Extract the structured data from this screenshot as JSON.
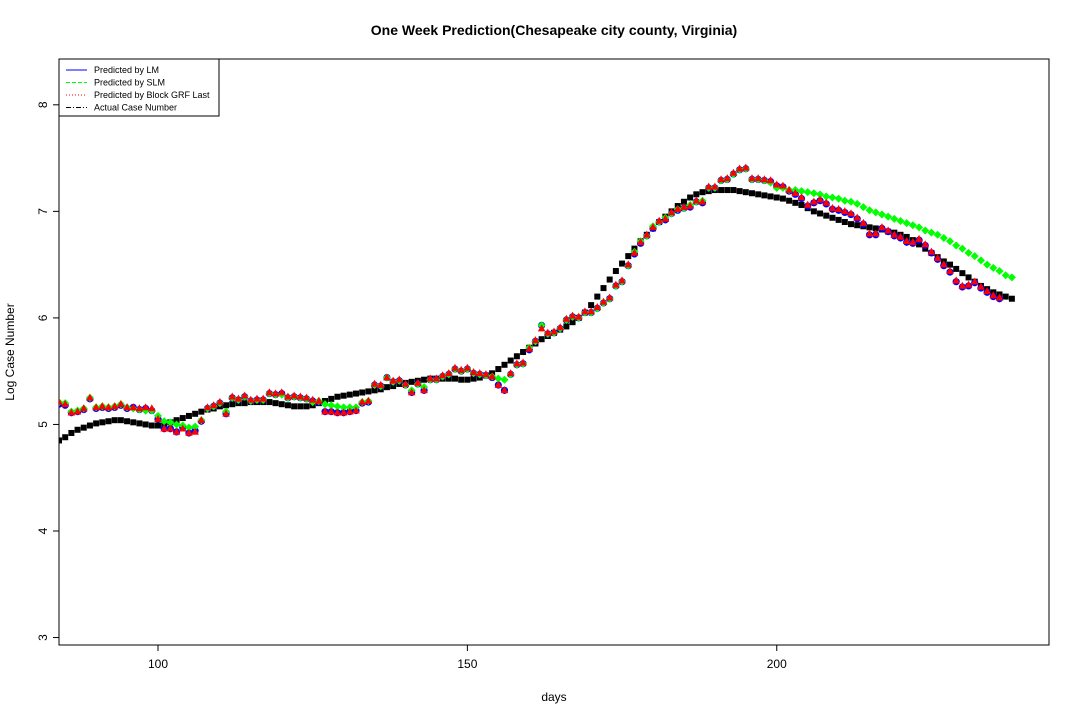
{
  "chart_data": {
    "type": "scatter",
    "title": "One Week Prediction(Chesapeake city county, Virginia)",
    "xlabel": "days",
    "ylabel": "Log Case Number",
    "xlim": [
      84,
      244
    ],
    "ylim": [
      2.93,
      8.43
    ],
    "x_ticks": [
      100,
      150,
      200
    ],
    "y_ticks": [
      3,
      4,
      5,
      6,
      7,
      8
    ],
    "grid": false,
    "legend_position": "top-left",
    "legend": [
      {
        "label": "Predicted by LM",
        "color": "#0000ff",
        "line": "solid"
      },
      {
        "label": "Predicted by SLM",
        "color": "#00ff00",
        "line": "dashed"
      },
      {
        "label": "Predicted by Block GRF Last",
        "color": "#ff0000",
        "line": "dotted"
      },
      {
        "label": "Actual Case Number",
        "color": "#000000",
        "line": "dashdot"
      }
    ],
    "series": [
      {
        "name": "Actual Case Number",
        "marker": "square",
        "color": "#000000",
        "x_start": 84,
        "values": [
          4.85,
          4.88,
          4.92,
          4.95,
          4.97,
          4.99,
          5.01,
          5.02,
          5.03,
          5.04,
          5.04,
          5.03,
          5.02,
          5.01,
          5.0,
          4.99,
          4.99,
          5.0,
          5.02,
          5.04,
          5.06,
          5.08,
          5.1,
          5.12,
          5.14,
          5.15,
          5.17,
          5.18,
          5.19,
          5.2,
          5.2,
          5.21,
          5.21,
          5.21,
          5.21,
          5.2,
          5.19,
          5.18,
          5.17,
          5.17,
          5.17,
          5.18,
          5.2,
          5.22,
          5.24,
          5.26,
          5.27,
          5.28,
          5.29,
          5.3,
          5.31,
          5.32,
          5.33,
          5.35,
          5.36,
          5.38,
          5.39,
          5.4,
          5.41,
          5.42,
          5.43,
          5.43,
          5.43,
          5.43,
          5.43,
          5.42,
          5.42,
          5.43,
          5.44,
          5.46,
          5.48,
          5.52,
          5.56,
          5.6,
          5.64,
          5.68,
          5.72,
          5.76,
          5.8,
          5.83,
          5.86,
          5.89,
          5.92,
          5.96,
          6.0,
          6.05,
          6.12,
          6.2,
          6.28,
          6.36,
          6.44,
          6.51,
          6.58,
          6.65,
          6.72,
          6.78,
          6.84,
          6.9,
          6.95,
          7.0,
          7.05,
          7.09,
          7.13,
          7.16,
          7.18,
          7.19,
          7.2,
          7.2,
          7.2,
          7.2,
          7.19,
          7.18,
          7.17,
          7.16,
          7.15,
          7.14,
          7.13,
          7.12,
          7.1,
          7.08,
          7.06,
          7.03,
          7.0,
          6.98,
          6.96,
          6.94,
          6.92,
          6.9,
          6.88,
          6.87,
          6.86,
          6.85,
          6.84,
          6.83,
          6.81,
          6.8,
          6.78,
          6.76,
          6.73,
          6.69,
          6.65,
          6.61,
          6.57,
          6.53,
          6.5,
          6.46,
          6.42,
          6.38,
          6.34,
          6.3,
          6.27,
          6.24,
          6.22,
          6.2,
          6.18
        ]
      },
      {
        "name": "Predicted by LM",
        "marker": "circle",
        "color": "#0000ff",
        "x_start": 84,
        "values": [
          5.19,
          5.18,
          5.11,
          5.12,
          5.14,
          5.24,
          5.15,
          5.16,
          5.15,
          5.16,
          5.18,
          5.15,
          5.16,
          5.14,
          5.15,
          5.13,
          5.05,
          4.96,
          4.96,
          4.93,
          4.97,
          4.92,
          4.94,
          5.03,
          5.15,
          5.17,
          5.2,
          5.1,
          5.25,
          5.23,
          5.26,
          5.22,
          5.23,
          5.23,
          5.29,
          5.28,
          5.29,
          5.25,
          5.26,
          5.25,
          5.24,
          5.22,
          5.21,
          5.12,
          5.12,
          5.11,
          5.11,
          5.12,
          5.13,
          5.2,
          5.21,
          5.37,
          5.36,
          5.44,
          5.4,
          5.41,
          5.37,
          5.3,
          5.38,
          5.32,
          5.42,
          5.42,
          5.45,
          5.47,
          5.52,
          5.5,
          5.52,
          5.48,
          5.47,
          5.46,
          5.44,
          5.37,
          5.32,
          5.47,
          5.56,
          5.57,
          5.7,
          5.78,
          5.93,
          5.85,
          5.86,
          5.9,
          5.98,
          6.01,
          6.0,
          6.05,
          6.05,
          6.09,
          6.14,
          6.18,
          6.3,
          6.34,
          6.49,
          6.6,
          6.7,
          6.77,
          6.84,
          6.9,
          6.92,
          6.98,
          7.01,
          7.03,
          7.04,
          7.09,
          7.08,
          7.22,
          7.22,
          7.29,
          7.3,
          7.35,
          7.39,
          7.4,
          7.3,
          7.3,
          7.29,
          7.28,
          7.24,
          7.23,
          7.19,
          7.16,
          7.12,
          7.05,
          7.08,
          7.1,
          7.07,
          7.02,
          7.01,
          6.99,
          6.97,
          6.93,
          6.88,
          6.78,
          6.78,
          6.84,
          6.81,
          6.77,
          6.75,
          6.71,
          6.7,
          6.73,
          6.68,
          6.61,
          6.55,
          6.49,
          6.43,
          6.34,
          6.29,
          6.3,
          6.33,
          6.28,
          6.24,
          6.2,
          6.18
        ]
      },
      {
        "name": "Predicted by SLM",
        "marker": "diamond",
        "color": "#00ff00",
        "x_start": 84,
        "values": [
          5.21,
          5.2,
          5.12,
          5.13,
          5.15,
          5.25,
          5.16,
          5.17,
          5.16,
          5.17,
          5.19,
          5.16,
          5.15,
          5.14,
          5.13,
          5.13,
          5.08,
          5.03,
          5.02,
          5.0,
          4.99,
          4.97,
          4.98,
          5.04,
          5.15,
          5.17,
          5.2,
          5.12,
          5.25,
          5.23,
          5.26,
          5.22,
          5.23,
          5.23,
          5.29,
          5.28,
          5.28,
          5.25,
          5.26,
          5.25,
          5.24,
          5.21,
          5.22,
          5.19,
          5.18,
          5.17,
          5.16,
          5.16,
          5.16,
          5.21,
          5.22,
          5.37,
          5.36,
          5.44,
          5.4,
          5.41,
          5.37,
          5.32,
          5.38,
          5.35,
          5.42,
          5.42,
          5.45,
          5.47,
          5.52,
          5.5,
          5.52,
          5.48,
          5.47,
          5.46,
          5.45,
          5.43,
          5.42,
          5.47,
          5.56,
          5.57,
          5.72,
          5.78,
          5.93,
          5.85,
          5.86,
          5.9,
          5.98,
          6.01,
          6.0,
          6.05,
          6.05,
          6.09,
          6.14,
          6.18,
          6.3,
          6.34,
          6.49,
          6.62,
          6.72,
          6.77,
          6.86,
          6.9,
          6.94,
          6.98,
          7.02,
          7.03,
          7.06,
          7.09,
          7.1,
          7.22,
          7.22,
          7.29,
          7.3,
          7.35,
          7.39,
          7.4,
          7.3,
          7.3,
          7.29,
          7.27,
          7.22,
          7.22,
          7.2,
          7.2,
          7.19,
          7.18,
          7.17,
          7.16,
          7.14,
          7.13,
          7.12,
          7.1,
          7.09,
          7.07,
          7.04,
          7.01,
          6.99,
          6.97,
          6.95,
          6.93,
          6.91,
          6.89,
          6.87,
          6.85,
          6.82,
          6.8,
          6.78,
          6.75,
          6.72,
          6.68,
          6.65,
          6.61,
          6.58,
          6.54,
          6.5,
          6.47,
          6.44,
          6.4,
          6.38
        ]
      },
      {
        "name": "Predicted by Block GRF Last",
        "marker": "triangle",
        "color": "#ff0000",
        "x_start": 84,
        "values": [
          5.21,
          5.19,
          5.11,
          5.12,
          5.15,
          5.25,
          5.16,
          5.17,
          5.16,
          5.17,
          5.19,
          5.16,
          5.16,
          5.15,
          5.16,
          5.15,
          5.05,
          4.96,
          4.96,
          4.93,
          4.96,
          4.92,
          4.93,
          5.04,
          5.16,
          5.18,
          5.21,
          5.1,
          5.26,
          5.24,
          5.27,
          5.23,
          5.24,
          5.24,
          5.3,
          5.29,
          5.3,
          5.26,
          5.27,
          5.26,
          5.25,
          5.23,
          5.22,
          5.12,
          5.12,
          5.11,
          5.11,
          5.12,
          5.13,
          5.21,
          5.22,
          5.38,
          5.37,
          5.44,
          5.41,
          5.42,
          5.38,
          5.3,
          5.39,
          5.32,
          5.43,
          5.43,
          5.46,
          5.48,
          5.53,
          5.51,
          5.53,
          5.49,
          5.48,
          5.47,
          5.45,
          5.37,
          5.32,
          5.48,
          5.57,
          5.58,
          5.71,
          5.79,
          5.9,
          5.86,
          5.87,
          5.91,
          5.99,
          6.02,
          6.01,
          6.06,
          6.06,
          6.1,
          6.15,
          6.19,
          6.31,
          6.35,
          6.5,
          6.61,
          6.71,
          6.78,
          6.85,
          6.91,
          6.93,
          6.99,
          7.02,
          7.04,
          7.05,
          7.1,
          7.09,
          7.23,
          7.23,
          7.3,
          7.31,
          7.36,
          7.4,
          7.41,
          7.31,
          7.31,
          7.3,
          7.29,
          7.25,
          7.24,
          7.2,
          7.17,
          7.13,
          7.06,
          7.09,
          7.11,
          7.08,
          7.03,
          7.02,
          7.0,
          6.98,
          6.94,
          6.89,
          6.79,
          6.79,
          6.85,
          6.82,
          6.78,
          6.76,
          6.72,
          6.71,
          6.74,
          6.69,
          6.62,
          6.56,
          6.5,
          6.44,
          6.35,
          6.3,
          6.31,
          6.34,
          6.29,
          6.25,
          6.21,
          6.19
        ]
      }
    ]
  }
}
